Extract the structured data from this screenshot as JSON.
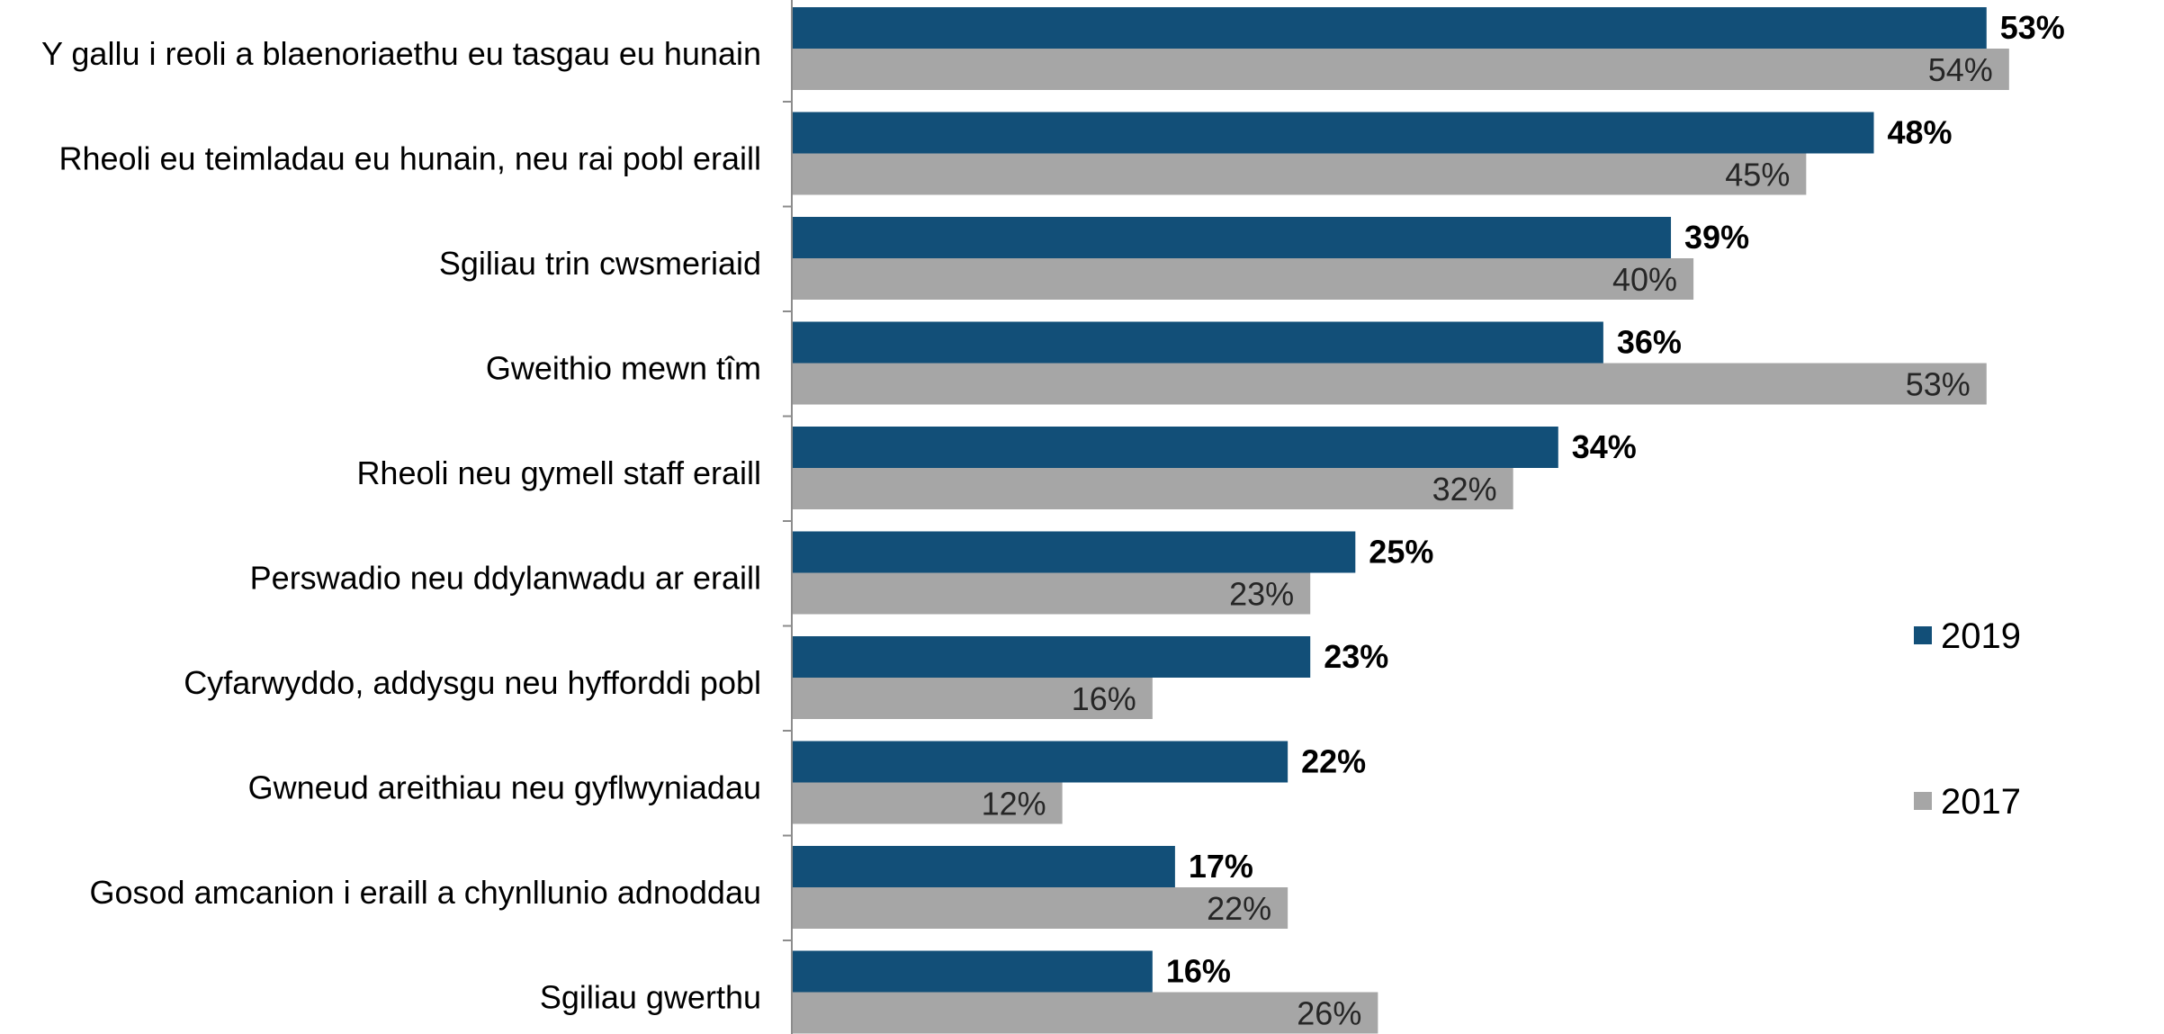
{
  "chart_data": {
    "type": "bar",
    "orientation": "horizontal",
    "categories": [
      "Y gallu i reoli a blaenoriaethu eu tasgau eu hunain",
      "Rheoli eu teimladau eu hunain, neu rai pobl eraill",
      "Sgiliau trin cwsmeriaid",
      "Gweithio mewn tîm",
      "Rheoli neu gymell staff eraill",
      "Perswadio neu ddylanwadu ar eraill",
      "Cyfarwyddo, addysgu neu hyfforddi pobl",
      "Gwneud areithiau neu gyflwyniadau",
      "Gosod amcanion i eraill a chynllunio adnoddau",
      "Sgiliau gwerthu"
    ],
    "series": [
      {
        "name": "2019",
        "color": "#124f78",
        "values": [
          53,
          48,
          39,
          36,
          34,
          25,
          23,
          22,
          17,
          16
        ],
        "labels": [
          "53%",
          "48%",
          "39%",
          "36%",
          "34%",
          "25%",
          "23%",
          "22%",
          "17%",
          "16%"
        ]
      },
      {
        "name": "2017",
        "color": "#a6a6a6",
        "values": [
          54,
          45,
          40,
          53,
          32,
          23,
          16,
          12,
          22,
          26
        ],
        "labels": [
          "54%",
          "45%",
          "40%",
          "53%",
          "32%",
          "23%",
          "16%",
          "12%",
          "22%",
          "26%"
        ]
      }
    ],
    "xlim": [
      0,
      57.4
    ],
    "grid": false,
    "legend_position": "right"
  }
}
